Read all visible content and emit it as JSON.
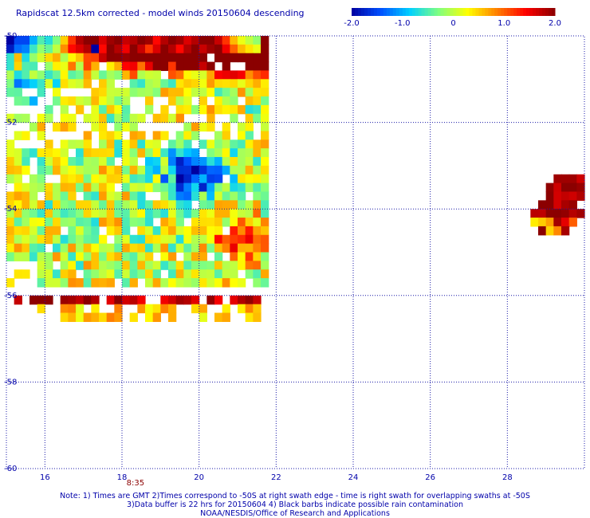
{
  "title": "Rapidscat 12.5km corrected - model winds 20150604 descending",
  "colorbar": {
    "min": -2.0,
    "max": 2.0,
    "tick_labels": [
      "-2.0",
      "-1.0",
      "0",
      "1.0",
      "2.0"
    ],
    "tick_values": [
      -2.0,
      -1.0,
      0,
      1.0,
      2.0
    ]
  },
  "axes": {
    "lon_range": [
      15.0,
      30.0
    ],
    "lat_range": [
      -60.0,
      -50.0
    ],
    "x_ticks": [
      16,
      18,
      20,
      22,
      24,
      26,
      28
    ],
    "x_tick_labels": [
      "16",
      "18",
      "20",
      "22",
      "24",
      "26",
      "28"
    ],
    "y_ticks": [
      -50,
      -52,
      -54,
      -56,
      -58,
      -60
    ],
    "y_tick_labels": [
      "-50",
      "-52",
      "-54",
      "-56",
      "-58",
      "-60"
    ],
    "gridlines": "dotted"
  },
  "swath_time": {
    "label": "8:35",
    "lon": 18.35
  },
  "notes": [
    "Note: 1) Times are GMT 2)Times correspond to -50S at right swath edge - time is right swath for overlapping swaths at -50S",
    "3)Data buffer is 22 hrs for 20150604 4) Black barbs indicate possible rain contamination",
    "NOAA/NESDIS/Office of Research and Applications"
  ],
  "chart_data": {
    "type": "heatmap",
    "title": "Rapidscat 12.5km corrected - model winds 20150604 descending",
    "variable": "wind speed difference (corrected - model)",
    "color_scale": {
      "min": -2.0,
      "max": 2.0,
      "colors": [
        "#0000a0",
        "#0050ff",
        "#00d0ff",
        "#80ff80",
        "#ffff00",
        "#ff8000",
        "#ff0000",
        "#8b0000"
      ]
    },
    "xlabel": "",
    "ylabel": "",
    "xlim": [
      15.0,
      30.0
    ],
    "ylim": [
      -60.0,
      -50.0
    ],
    "cell_size_deg": 0.2,
    "regions": [
      {
        "name": "main swath",
        "lon": [
          15.0,
          21.6
        ],
        "lat": [
          -55.9,
          -50.0
        ]
      },
      {
        "name": "lower strip",
        "lon": [
          15.0,
          21.6
        ],
        "lat": [
          -56.6,
          -56.0
        ]
      },
      {
        "name": "east patch",
        "lon": [
          28.6,
          29.9
        ],
        "lat": [
          -54.7,
          -53.2
        ]
      }
    ],
    "cells": [
      {
        "lon": 15.0,
        "lat": -50.1,
        "value": -2.0
      },
      {
        "lon": 15.2,
        "lat": -50.1,
        "value": -1.5
      },
      {
        "lon": 15.4,
        "lat": -50.1,
        "value": -1.5
      },
      {
        "lon": 15.6,
        "lat": -50.1,
        "value": -1.0
      },
      {
        "lon": 15.8,
        "lat": -50.1,
        "value": -0.5
      },
      {
        "lon": 16.0,
        "lat": -50.1,
        "value": -0.7
      },
      {
        "lon": 16.2,
        "lat": -50.1,
        "value": -0.3
      },
      {
        "lon": 16.4,
        "lat": -50.1,
        "value": 0.5
      },
      {
        "lon": 16.6,
        "lat": -50.1,
        "value": 1.2
      },
      {
        "lon": 16.8,
        "lat": -50.1,
        "value": 1.8
      },
      {
        "lon": 17.0,
        "lat": -50.1,
        "value": 2.0
      },
      {
        "lon": 17.2,
        "lat": -50.1,
        "value": 2.0
      },
      {
        "lon": 17.4,
        "lat": -50.1,
        "value": 1.6
      },
      {
        "lon": 17.6,
        "lat": -50.1,
        "value": 1.9
      },
      {
        "lon": 17.8,
        "lat": -50.1,
        "value": 2.0
      },
      {
        "lon": 18.0,
        "lat": -50.1,
        "value": 1.7
      },
      {
        "lon": 18.2,
        "lat": -50.1,
        "value": 1.8
      },
      {
        "lon": 18.4,
        "lat": -50.1,
        "value": 2.0
      },
      {
        "lon": 18.6,
        "lat": -50.1,
        "value": 1.9
      },
      {
        "lon": 18.8,
        "lat": -50.1,
        "value": 1.4
      },
      {
        "lon": 19.0,
        "lat": -50.1,
        "value": 1.8
      },
      {
        "lon": 19.2,
        "lat": -50.1,
        "value": 2.0
      },
      {
        "lon": 19.4,
        "lat": -50.1,
        "value": 1.9
      },
      {
        "lon": 19.6,
        "lat": -50.1,
        "value": 1.6
      },
      {
        "lon": 19.8,
        "lat": -50.1,
        "value": 1.8
      },
      {
        "lon": 20.0,
        "lat": -50.1,
        "value": 2.0
      },
      {
        "lon": 20.2,
        "lat": -50.1,
        "value": 2.0
      },
      {
        "lon": 20.4,
        "lat": -50.1,
        "value": 1.7
      },
      {
        "lon": 20.6,
        "lat": -50.1,
        "value": 1.2
      },
      {
        "lon": 20.8,
        "lat": -50.1,
        "value": 0.6
      },
      {
        "lon": 21.0,
        "lat": -50.1,
        "value": 0.2
      },
      {
        "lon": 21.2,
        "lat": -50.1,
        "value": 0.0
      },
      {
        "lon": 21.4,
        "lat": -50.1,
        "value": -0.2
      },
      {
        "lon": 15.0,
        "lat": -50.3,
        "value": -1.8
      },
      {
        "lon": 15.2,
        "lat": -50.3,
        "value": -1.3
      },
      {
        "lon": 15.4,
        "lat": -50.3,
        "value": -1.2
      },
      {
        "lon": 15.6,
        "lat": -50.3,
        "value": -0.6
      },
      {
        "lon": 15.8,
        "lat": -50.3,
        "value": -0.2
      },
      {
        "lon": 16.0,
        "lat": -50.3,
        "value": -0.4
      },
      {
        "lon": 16.2,
        "lat": -50.3,
        "value": 0.0
      },
      {
        "lon": 16.4,
        "lat": -50.3,
        "value": 0.8
      },
      {
        "lon": 16.6,
        "lat": -50.3,
        "value": 1.4
      },
      {
        "lon": 16.8,
        "lat": -50.3,
        "value": 1.6
      },
      {
        "lon": 17.0,
        "lat": -50.3,
        "value": 1.8
      },
      {
        "lon": 17.2,
        "lat": -50.3,
        "value": -2.0
      },
      {
        "lon": 17.4,
        "lat": -50.3,
        "value": 1.4
      },
      {
        "lon": 17.6,
        "lat": -50.3,
        "value": 2.0
      },
      {
        "lon": 17.8,
        "lat": -50.3,
        "value": 1.8
      },
      {
        "lon": 18.0,
        "lat": -50.3,
        "value": 1.5
      },
      {
        "lon": 18.2,
        "lat": -50.3,
        "value": 2.0
      },
      {
        "lon": 18.4,
        "lat": -50.3,
        "value": 1.7
      },
      {
        "lon": 18.6,
        "lat": -50.3,
        "value": 1.2
      },
      {
        "lon": 18.8,
        "lat": -50.3,
        "value": 1.6
      },
      {
        "lon": 19.0,
        "lat": -50.3,
        "value": 2.0
      },
      {
        "lon": 19.2,
        "lat": -50.3,
        "value": 1.8
      },
      {
        "lon": 19.4,
        "lat": -50.3,
        "value": 1.4
      },
      {
        "lon": 19.6,
        "lat": -50.3,
        "value": 1.8
      },
      {
        "lon": 19.8,
        "lat": -50.3,
        "value": 2.0
      },
      {
        "lon": 20.0,
        "lat": -50.3,
        "value": 1.7
      },
      {
        "lon": 20.2,
        "lat": -50.3,
        "value": 1.9
      },
      {
        "lon": 20.4,
        "lat": -50.3,
        "value": 2.0
      },
      {
        "lon": 20.6,
        "lat": -50.3,
        "value": 1.5
      },
      {
        "lon": 20.8,
        "lat": -50.3,
        "value": 1.0
      },
      {
        "lon": 21.0,
        "lat": -50.3,
        "value": 0.6
      },
      {
        "lon": 21.2,
        "lat": -50.3,
        "value": 0.4
      },
      {
        "lon": 21.4,
        "lat": -50.3,
        "value": 0.2
      }
    ]
  }
}
